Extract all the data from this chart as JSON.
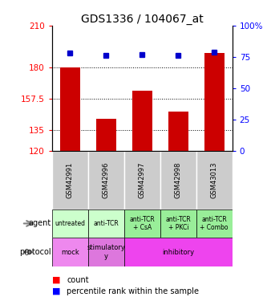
{
  "title": "GDS1336 / 104067_at",
  "samples": [
    "GSM42991",
    "GSM42996",
    "GSM42997",
    "GSM42998",
    "GSM43013"
  ],
  "counts": [
    180,
    143,
    163,
    148,
    190
  ],
  "percentiles": [
    78,
    76,
    77,
    76,
    79
  ],
  "ylim_left": [
    120,
    210
  ],
  "ylim_right": [
    0,
    100
  ],
  "yticks_left": [
    120,
    135,
    157.5,
    180,
    210
  ],
  "yticks_right": [
    0,
    25,
    50,
    75,
    100
  ],
  "bar_color": "#cc0000",
  "dot_color": "#0000cc",
  "agent_labels": [
    "untreated",
    "anti-TCR",
    "anti-TCR\n+ CsA",
    "anti-TCR\n+ PKCi",
    "anti-TCR\n+ Combo"
  ],
  "agent_bg_light": "#ccffcc",
  "agent_bg_dark": "#99ee99",
  "protocol_mock_bg": "#ee88ee",
  "protocol_stim_bg": "#dd77dd",
  "protocol_inhib_bg": "#ee44ee",
  "sample_bg": "#cccccc",
  "dotline_vals": [
    135,
    157.5,
    180
  ],
  "proto_config": [
    [
      0,
      1,
      "mock"
    ],
    [
      1,
      1,
      "stimulatory\ny"
    ],
    [
      2,
      3,
      "inhibitory"
    ]
  ]
}
